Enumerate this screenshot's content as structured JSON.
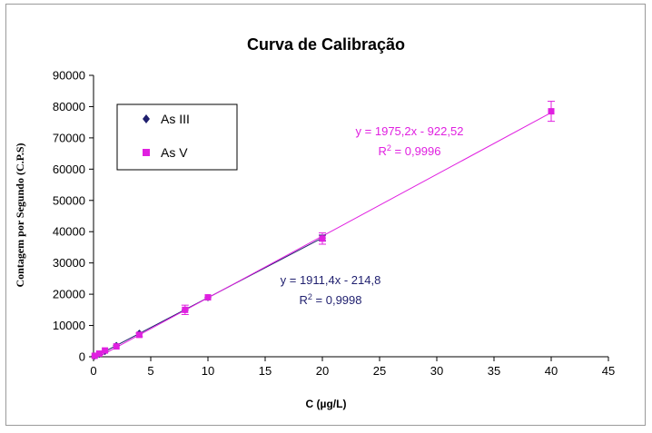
{
  "chart_data": {
    "type": "scatter",
    "title": "Curva de Calibração",
    "xlabel": "C (µg/L)",
    "ylabel": "Contagem por Segundo (C.P.S)",
    "xlim": [
      0,
      45
    ],
    "ylim": [
      0,
      90000
    ],
    "x_ticks": [
      0,
      5,
      10,
      15,
      20,
      25,
      30,
      35,
      40,
      45
    ],
    "y_ticks": [
      0,
      10000,
      20000,
      30000,
      40000,
      50000,
      60000,
      70000,
      80000,
      90000
    ],
    "grid": false,
    "legend_position": "top-left",
    "series": [
      {
        "name": "As III",
        "color": "#1f1f6e",
        "marker": "diamond",
        "points": [
          {
            "x": 0.1,
            "y": 200,
            "err": 0
          },
          {
            "x": 0.5,
            "y": 800,
            "err": 0
          },
          {
            "x": 1,
            "y": 1700,
            "err": 0
          },
          {
            "x": 2,
            "y": 3600,
            "err": 0
          },
          {
            "x": 4,
            "y": 7500,
            "err": 0
          },
          {
            "x": 8,
            "y": 15000,
            "err": 0
          },
          {
            "x": 10,
            "y": 18900,
            "err": 0
          },
          {
            "x": 20,
            "y": 38000,
            "err": 900
          }
        ],
        "fit": {
          "slope": 1911.4,
          "intercept": -214.8,
          "x_range": [
            0,
            20
          ],
          "equation": "y = 1911,4x - 214,8",
          "r2_prefix": "R",
          "r2_sup": "2",
          "r2_value": " = 0,9998"
        }
      },
      {
        "name": "As V",
        "color": "#e020e0",
        "marker": "square",
        "points": [
          {
            "x": 0.1,
            "y": 300,
            "err": 0
          },
          {
            "x": 0.5,
            "y": 1000,
            "err": 0
          },
          {
            "x": 1,
            "y": 2000,
            "err": 0
          },
          {
            "x": 2,
            "y": 3300,
            "err": 0
          },
          {
            "x": 4,
            "y": 7000,
            "err": 600
          },
          {
            "x": 8,
            "y": 15000,
            "err": 1500
          },
          {
            "x": 10,
            "y": 19000,
            "err": 0
          },
          {
            "x": 20,
            "y": 37800,
            "err": 1800
          },
          {
            "x": 40,
            "y": 78500,
            "err": 3200
          }
        ],
        "fit": {
          "slope": 1975.2,
          "intercept": -922.52,
          "x_range": [
            0,
            40
          ],
          "equation": "y = 1975,2x - 922,52",
          "r2_prefix": "R",
          "r2_sup": "2",
          "r2_value": " = 0,9996"
        }
      }
    ]
  }
}
